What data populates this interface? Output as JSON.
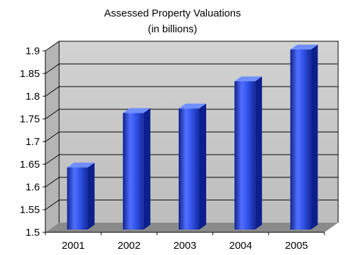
{
  "chart_data": {
    "type": "bar",
    "title": "Assessed Property Valuations",
    "subtitle": "(in billions)",
    "categories": [
      "2001",
      "2002",
      "2003",
      "2004",
      "2005"
    ],
    "values": [
      1.64,
      1.76,
      1.77,
      1.83,
      1.9
    ],
    "ylim": [
      1.5,
      1.9
    ],
    "yticks": [
      "1.5",
      "1.55",
      "1.6",
      "1.65",
      "1.7",
      "1.75",
      "1.8",
      "1.85",
      "1.9"
    ],
    "xlabel": "",
    "ylabel": "",
    "grid": true,
    "legend": "none",
    "style": "3d-column",
    "colors": {
      "bar_light": "#6f8fff",
      "bar_mid": "#2f52e6",
      "bar_dark": "#0d1f8c",
      "wall": "#c4c4c4",
      "floor": "#8a8a8a"
    }
  }
}
